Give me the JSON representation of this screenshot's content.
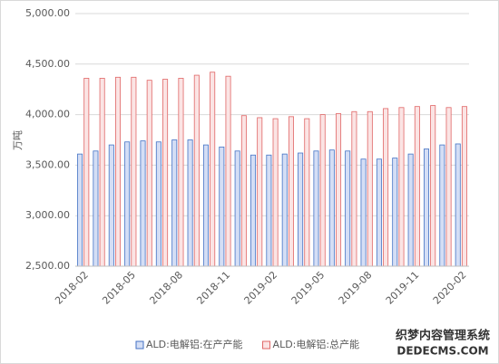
{
  "chart_data": {
    "type": "bar",
    "y_label": "万吨",
    "categories": [
      "2018-02",
      null,
      null,
      "2018-05",
      null,
      null,
      "2018-08",
      null,
      null,
      "2018-11",
      null,
      null,
      "2019-02",
      null,
      null,
      "2019-05",
      null,
      null,
      "2019-08",
      null,
      null,
      "2019-11",
      null,
      null,
      "2020-02"
    ],
    "series": [
      {
        "name": "ALD:电解铝:在产产能",
        "color": "#4472c4",
        "values": [
          3610,
          3640,
          3700,
          3730,
          3740,
          3730,
          3750,
          3750,
          3700,
          3680,
          3640,
          3600,
          3600,
          3610,
          3620,
          3640,
          3650,
          3640,
          3560,
          3560,
          3570,
          3610,
          3660,
          3700,
          3710
        ]
      },
      {
        "name": "ALD:电解铝:总产能",
        "color": "#e06666",
        "values": [
          4360,
          4360,
          4370,
          4370,
          4340,
          4350,
          4360,
          4390,
          4420,
          4380,
          3990,
          3970,
          3960,
          3980,
          3960,
          4000,
          4010,
          4030,
          4030,
          4060,
          4070,
          4080,
          4090,
          4070,
          4080
        ]
      }
    ],
    "ylim": [
      2500,
      5000
    ],
    "yticks": [
      {
        "value": 2500,
        "label": "2,500.00"
      },
      {
        "value": 3000,
        "label": "3,000.00"
      },
      {
        "value": 3500,
        "label": "3,500.00"
      },
      {
        "value": 4000,
        "label": "4,000.00"
      },
      {
        "value": 4500,
        "label": "4,500.00"
      },
      {
        "value": 5000,
        "label": "5,000.00"
      }
    ],
    "grid": true,
    "legend": "bottom"
  },
  "watermark": {
    "line1": "织梦内容管理系统",
    "line2": "DEDECMS.COM"
  }
}
